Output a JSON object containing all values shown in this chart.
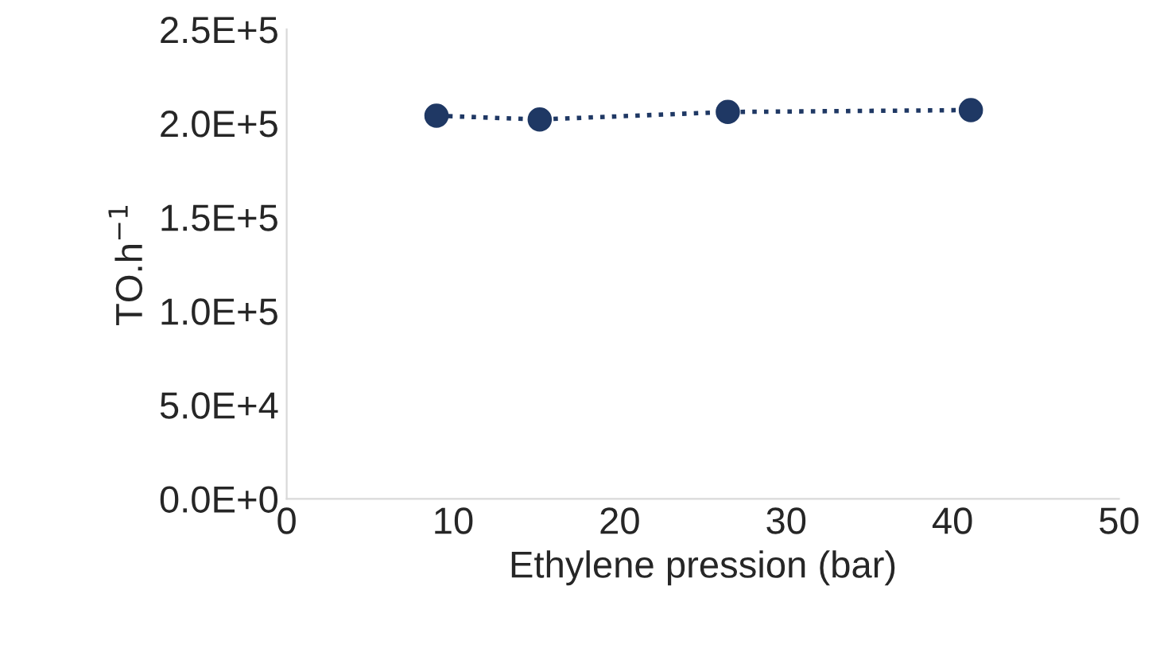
{
  "chart_data": {
    "type": "line",
    "xlabel": "Ethylene pression (bar)",
    "ylabel": "TO.h$^{−1}$",
    "series": [
      {
        "color": "#1f3864",
        "x": [
          9,
          15.2,
          26.5,
          41.1
        ],
        "values": [
          204000,
          202000,
          206000,
          207000
        ]
      }
    ],
    "marker": "circle",
    "line_style": "dotted",
    "grid": false,
    "legend": false,
    "xlim": [
      0,
      50
    ],
    "xticks": [
      0,
      10,
      20,
      30,
      40,
      50
    ],
    "ylim": [
      0,
      250000
    ],
    "yticks": [
      {
        "value": 0,
        "label": "0.0E+0"
      },
      {
        "value": 50000,
        "label": "5.0E+4"
      },
      {
        "value": 100000,
        "label": "1.0E+5"
      },
      {
        "value": 150000,
        "label": "1.5E+5"
      },
      {
        "value": 200000,
        "label": "2.0E+5"
      },
      {
        "value": 250000,
        "label": "2.5E+5"
      }
    ]
  }
}
